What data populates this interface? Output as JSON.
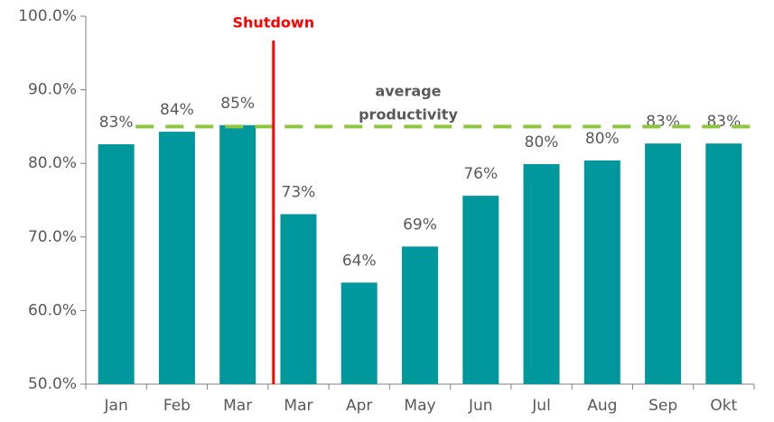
{
  "chart_data": {
    "type": "bar",
    "categories": [
      "Jan",
      "Feb",
      "Mar",
      "Mar",
      "Apr",
      "May",
      "Jun",
      "Jul",
      "Aug",
      "Sep",
      "Okt"
    ],
    "values": [
      82.6,
      84.3,
      85.2,
      73.1,
      63.8,
      68.7,
      75.6,
      79.9,
      80.4,
      82.7,
      82.7
    ],
    "value_labels": [
      "83%",
      "84%",
      "85%",
      "73%",
      "64%",
      "69%",
      "76%",
      "80%",
      "80%",
      "83%",
      "83%"
    ],
    "color": "#00979d",
    "ylim": [
      50,
      100
    ],
    "yticks": [
      {
        "value": 50,
        "label": "50.0%"
      },
      {
        "value": 60,
        "label": "60.0%"
      },
      {
        "value": 70,
        "label": "70.0%"
      },
      {
        "value": 80,
        "label": "80.0%"
      },
      {
        "value": 90,
        "label": "90.0%"
      },
      {
        "value": 100,
        "label": "100.0%"
      }
    ],
    "average": {
      "value": 85,
      "label": [
        "average",
        "productivity"
      ],
      "color": "#8dc63f"
    },
    "shutdown": {
      "label": "Shutdown",
      "color": "#ff0000"
    }
  }
}
